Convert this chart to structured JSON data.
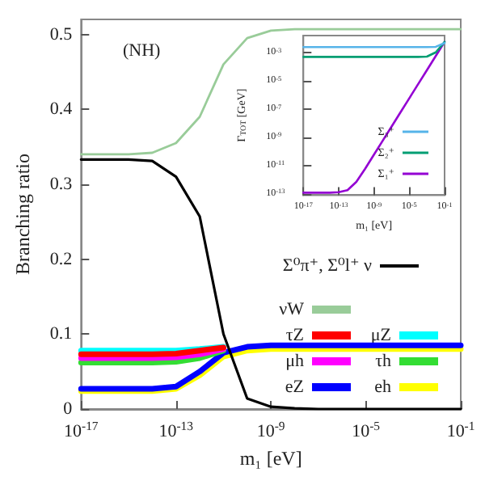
{
  "chart_data": [
    {
      "type": "line",
      "ylabel": "Branching ratio",
      "xlabel": "m₁ [eV]",
      "annotations": [
        "(NH)"
      ],
      "log": "x",
      "grid": false,
      "legend": "bottom right",
      "marker": "none",
      "line_style": "solid",
      "x": [
        1e-17,
        1e-16,
        1e-15,
        1e-14,
        1e-13,
        1e-12,
        1e-11,
        1e-10,
        1e-09,
        1e-08,
        1e-07,
        1e-06,
        1e-05,
        0.0001,
        0.001,
        0.01,
        0.1
      ],
      "xlim": [
        1e-17,
        0.1
      ],
      "xticks": [
        {
          "value": 1e-17,
          "label": "10$^{-17}$"
        },
        {
          "value": 1e-13,
          "label": "10$^{-13}$"
        },
        {
          "value": 1e-09,
          "label": "10$^{-9}$"
        },
        {
          "value": 1e-05,
          "label": "10$^{-5}$"
        },
        {
          "value": 0.1,
          "label": "10$^{-1}$"
        }
      ],
      "ylim": [
        0,
        0.52
      ],
      "yticks": [
        0,
        0.1,
        0.2,
        0.3,
        0.4,
        0.5
      ],
      "series": [
        {
          "name": "Σ⁰π⁺, Σ⁰l⁺ ν",
          "color": "#000000",
          "values": [
            0.333,
            0.333,
            0.333,
            0.331,
            0.31,
            0.257,
            0.1,
            0.014,
            0.003,
            0.001,
            0,
            0,
            0,
            0,
            0,
            0,
            0
          ]
        },
        {
          "name": "νW",
          "color": "#99cc99",
          "values": [
            0.34,
            0.34,
            0.34,
            0.342,
            0.355,
            0.39,
            0.46,
            0.495,
            0.505,
            0.507,
            0.507,
            0.507,
            0.507,
            0.507,
            0.507,
            0.507,
            0.507
          ]
        },
        {
          "name": "τZ",
          "color": "#ff0000",
          "values": [
            0.073,
            0.073,
            0.073,
            0.073,
            0.074,
            0.078,
            0.082,
            null,
            null,
            null,
            null,
            null,
            null,
            null,
            null,
            null,
            null
          ]
        },
        {
          "name": "μZ",
          "color": "#00ffff",
          "values": [
            0.078,
            0.078,
            0.078,
            0.078,
            0.078,
            0.08,
            0.083,
            null,
            null,
            null,
            null,
            null,
            null,
            null,
            null,
            null,
            null
          ]
        },
        {
          "name": "μh",
          "color": "#ff00ff",
          "values": [
            0.068,
            0.068,
            0.068,
            0.068,
            0.069,
            0.073,
            0.08,
            null,
            null,
            null,
            null,
            null,
            null,
            null,
            null,
            null,
            null
          ]
        },
        {
          "name": "τh",
          "color": "#33dd33",
          "values": [
            0.062,
            0.062,
            0.062,
            0.062,
            0.063,
            0.068,
            0.078,
            null,
            null,
            null,
            null,
            null,
            null,
            null,
            null,
            null,
            null
          ]
        },
        {
          "name": "eZ",
          "color": "#0000ff",
          "values": [
            0.027,
            0.027,
            0.027,
            0.027,
            0.03,
            0.05,
            0.075,
            0.083,
            0.085,
            0.085,
            0.085,
            0.085,
            0.085,
            0.085,
            0.085,
            0.085,
            0.085
          ]
        },
        {
          "name": "eh",
          "color": "#ffff00",
          "values": [
            0.024,
            0.024,
            0.024,
            0.024,
            0.027,
            0.045,
            0.07,
            0.078,
            0.08,
            0.08,
            0.08,
            0.08,
            0.08,
            0.08,
            0.08,
            0.08,
            0.08
          ]
        }
      ]
    },
    {
      "type": "line",
      "ylabel": "Γ$_{TOT}$ [GeV]",
      "xlabel": "m₁ [eV]",
      "log": "xy",
      "grid": false,
      "legend": "bottom right",
      "marker": "none",
      "line_style": "solid",
      "x": [
        1e-17,
        1e-16,
        1e-15,
        1e-14,
        1e-13,
        1e-12,
        1e-11,
        1e-10,
        1e-09,
        1e-08,
        1e-07,
        1e-06,
        1e-05,
        0.0001,
        0.001,
        0.01,
        0.1
      ],
      "xlim": [
        1e-17,
        0.1
      ],
      "xticks": [
        {
          "value": 1e-17,
          "label": "10$^{-17}$"
        },
        {
          "value": 1e-13,
          "label": "10$^{-13}$"
        },
        {
          "value": 1e-09,
          "label": "10$^{-9}$"
        },
        {
          "value": 1e-05,
          "label": "10$^{-5}$"
        },
        {
          "value": 0.1,
          "label": "10$^{-1}$"
        }
      ],
      "ylim": [
        8e-14,
        0.017
      ],
      "yticks": [
        {
          "value": 1e-13,
          "label": "10$^{-13}$"
        },
        {
          "value": 1e-11,
          "label": "10$^{-11}$"
        },
        {
          "value": 1e-09,
          "label": "10$^{-9}$"
        },
        {
          "value": 1e-07,
          "label": "10$^{-7}$"
        },
        {
          "value": 1e-05,
          "label": "10$^{-5}$"
        },
        {
          "value": 0.001,
          "label": "10$^{-3}$"
        }
      ],
      "series": [
        {
          "name": "Σ₃⁺",
          "color": "#56b4e9",
          "values": [
            0.0026,
            0.0026,
            0.0026,
            0.0026,
            0.0026,
            0.0026,
            0.0026,
            0.0026,
            0.0026,
            0.0026,
            0.0026,
            0.0026,
            0.0026,
            0.0026,
            0.0026,
            0.0027,
            0.005
          ]
        },
        {
          "name": "Σ₂⁺",
          "color": "#009e73",
          "values": [
            0.00052,
            0.00052,
            0.00052,
            0.00052,
            0.00052,
            0.00052,
            0.00052,
            0.00052,
            0.00052,
            0.00052,
            0.00052,
            0.00052,
            0.00052,
            0.00052,
            0.00055,
            0.0011,
            0.006
          ]
        },
        {
          "name": "Σ₁⁺",
          "color": "#9400d3",
          "values": [
            1.2e-13,
            1.2e-13,
            1.2e-13,
            1.2e-13,
            1.3e-13,
            1.8e-13,
            7e-13,
            6e-12,
            6e-11,
            6e-10,
            6e-09,
            6e-08,
            6e-07,
            6e-06,
            6e-05,
            0.0006,
            0.006
          ]
        }
      ]
    }
  ]
}
